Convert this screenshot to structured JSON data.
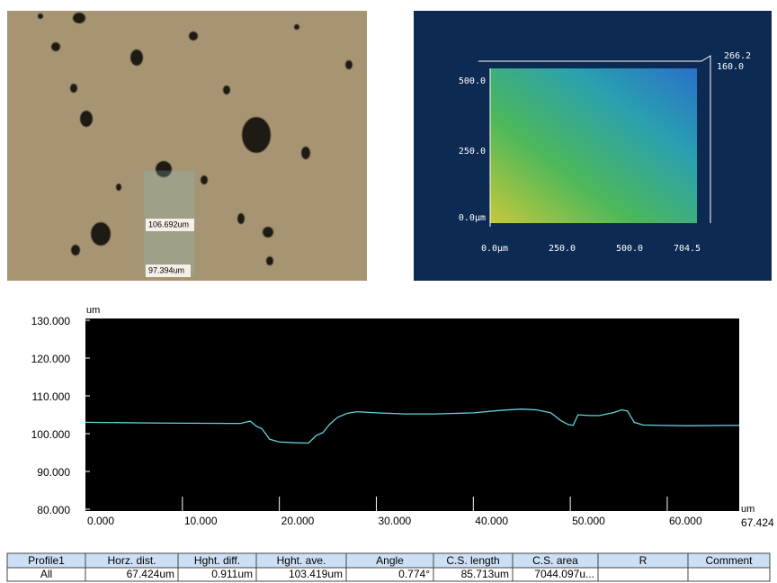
{
  "micrograph": {
    "labels": [
      "106.692um",
      "97.394um"
    ]
  },
  "view3d": {
    "yticks": [
      "500.0",
      "250.0",
      "0.0µm"
    ],
    "xticks": [
      "0.0µm",
      "250.0",
      "500.0",
      "704.5"
    ],
    "ztop": [
      "266.2",
      "160.0"
    ]
  },
  "chart_data": {
    "type": "line",
    "y_unit": "um",
    "x_unit": "um",
    "color": "#5fd3dc",
    "x": [
      0,
      8,
      16,
      17,
      17.6,
      18.2,
      19,
      20,
      21.5,
      23,
      23.8,
      24.5,
      25.2,
      26,
      27,
      28,
      30,
      33,
      36,
      40,
      43,
      45,
      46.5,
      48,
      49,
      49.8,
      50.3,
      50.8,
      52,
      53,
      54.5,
      55.3,
      55.9,
      56.6,
      57.5,
      59,
      62,
      67.424
    ],
    "values": [
      103,
      102.8,
      102.7,
      103.3,
      102,
      101.3,
      98.5,
      97.8,
      97.6,
      97.5,
      99.5,
      100.3,
      102.5,
      104.3,
      105.4,
      105.8,
      105.5,
      105.2,
      105.2,
      105.5,
      106.2,
      106.5,
      106.3,
      105.5,
      103.5,
      102.4,
      102.2,
      105,
      104.8,
      104.8,
      105.6,
      106.3,
      106,
      103,
      102.3,
      102.2,
      102.1,
      102.2
    ],
    "xlim": [
      0,
      67.424
    ],
    "ylim": [
      80,
      130
    ],
    "xticks": [
      {
        "value": 0,
        "label": "0.000"
      },
      {
        "value": 10,
        "label": "10.000"
      },
      {
        "value": 20,
        "label": "20.000"
      },
      {
        "value": 30,
        "label": "30.000"
      },
      {
        "value": 40,
        "label": "40.000"
      },
      {
        "value": 50,
        "label": "50.000"
      },
      {
        "value": 60,
        "label": "60.000"
      },
      67.424
    ],
    "yticks": [
      {
        "value": 80,
        "label": "80.000"
      },
      {
        "value": 90,
        "label": "90.000"
      },
      {
        "value": 100,
        "label": "100.000"
      },
      {
        "value": 110,
        "label": "110.000"
      },
      {
        "value": 120,
        "label": "120.000"
      },
      {
        "value": 130,
        "label": "130.000"
      }
    ]
  },
  "table": {
    "header": [
      "Profile1",
      "Horz. dist.",
      "Hght. diff.",
      "Hght. ave.",
      "Angle",
      "C.S. length",
      "C.S. area",
      "R",
      "Comment"
    ],
    "rows": [
      [
        "All",
        "67.424um",
        "0.911um",
        "103.419um",
        "0.774°",
        "85.713um",
        "7044.097u..."
      ]
    ]
  }
}
